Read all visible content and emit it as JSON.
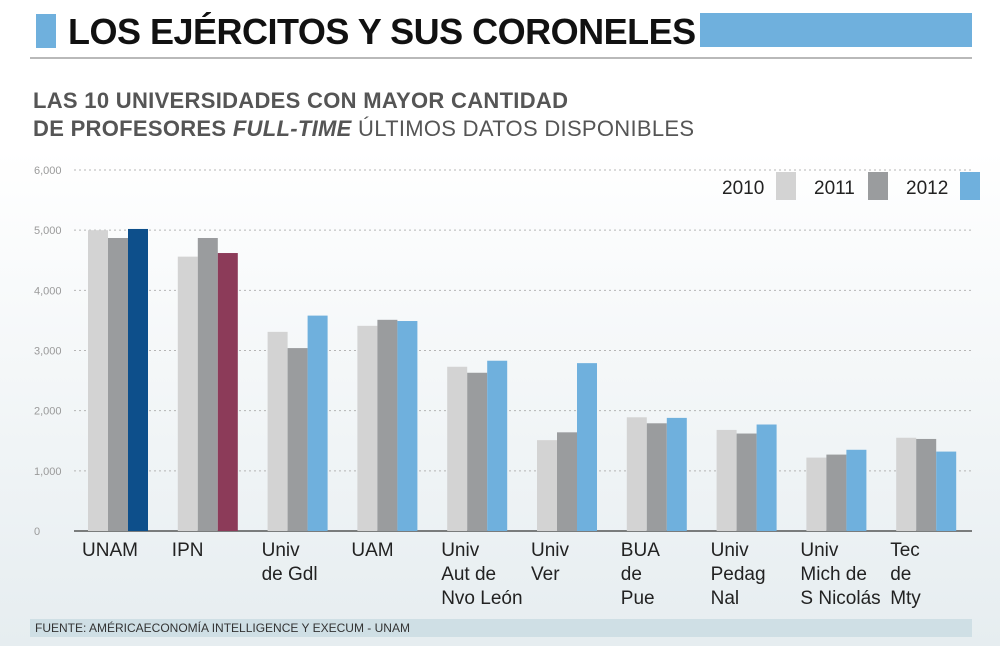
{
  "header": {
    "title": "LOS EJÉRCITOS Y SUS CORONELES",
    "accent_color": "#6fb0dd"
  },
  "subtitle": {
    "line1": "LAS 10 UNIVERSIDADES CON MAYOR CANTIDAD",
    "line2_bold": "DE PROFESORES",
    "line2_italic": "FULL-TIME",
    "line2_rest": "ÚLTIMOS DATOS DISPONIBLES"
  },
  "source": "FUENTE: AMÉRICAECONOMÍA INTELLIGENCE Y EXECUM - UNAM",
  "chart_data": {
    "type": "bar",
    "categories": [
      [
        "UNAM"
      ],
      [
        "IPN"
      ],
      [
        "Univ",
        "de Gdl"
      ],
      [
        "UAM"
      ],
      [
        "Univ",
        "Aut de",
        "Nvo León"
      ],
      [
        "Univ",
        "Ver"
      ],
      [
        "BUA",
        "de",
        "Pue"
      ],
      [
        "Univ",
        "Pedag",
        "Nal"
      ],
      [
        "Univ",
        "Mich de",
        "S Nicolás"
      ],
      [
        "Tec",
        "de",
        "Mty"
      ]
    ],
    "series": [
      {
        "name": "2010",
        "color": "#d3d3d3",
        "values": [
          5000,
          4560,
          3310,
          3410,
          2730,
          1510,
          1890,
          1680,
          1220,
          1550
        ]
      },
      {
        "name": "2011",
        "color": "#9a9c9e",
        "values": [
          4870,
          4870,
          3040,
          3510,
          2630,
          1640,
          1790,
          1620,
          1270,
          1530
        ]
      },
      {
        "name": "2012",
        "color": "#6fb0dd",
        "values": [
          5020,
          4620,
          3580,
          3490,
          2830,
          2790,
          1880,
          1770,
          1350,
          1320
        ]
      }
    ],
    "highlight_colors": {
      "0": "#0d4f8b",
      "1": "#8c3b59"
    },
    "y_ticks": [
      "0",
      "1,000",
      "2,000",
      "3,000",
      "4,000",
      "5,000",
      "6,000"
    ],
    "ylim": [
      0,
      6000
    ],
    "grid": true,
    "legend_position": "top-right"
  }
}
